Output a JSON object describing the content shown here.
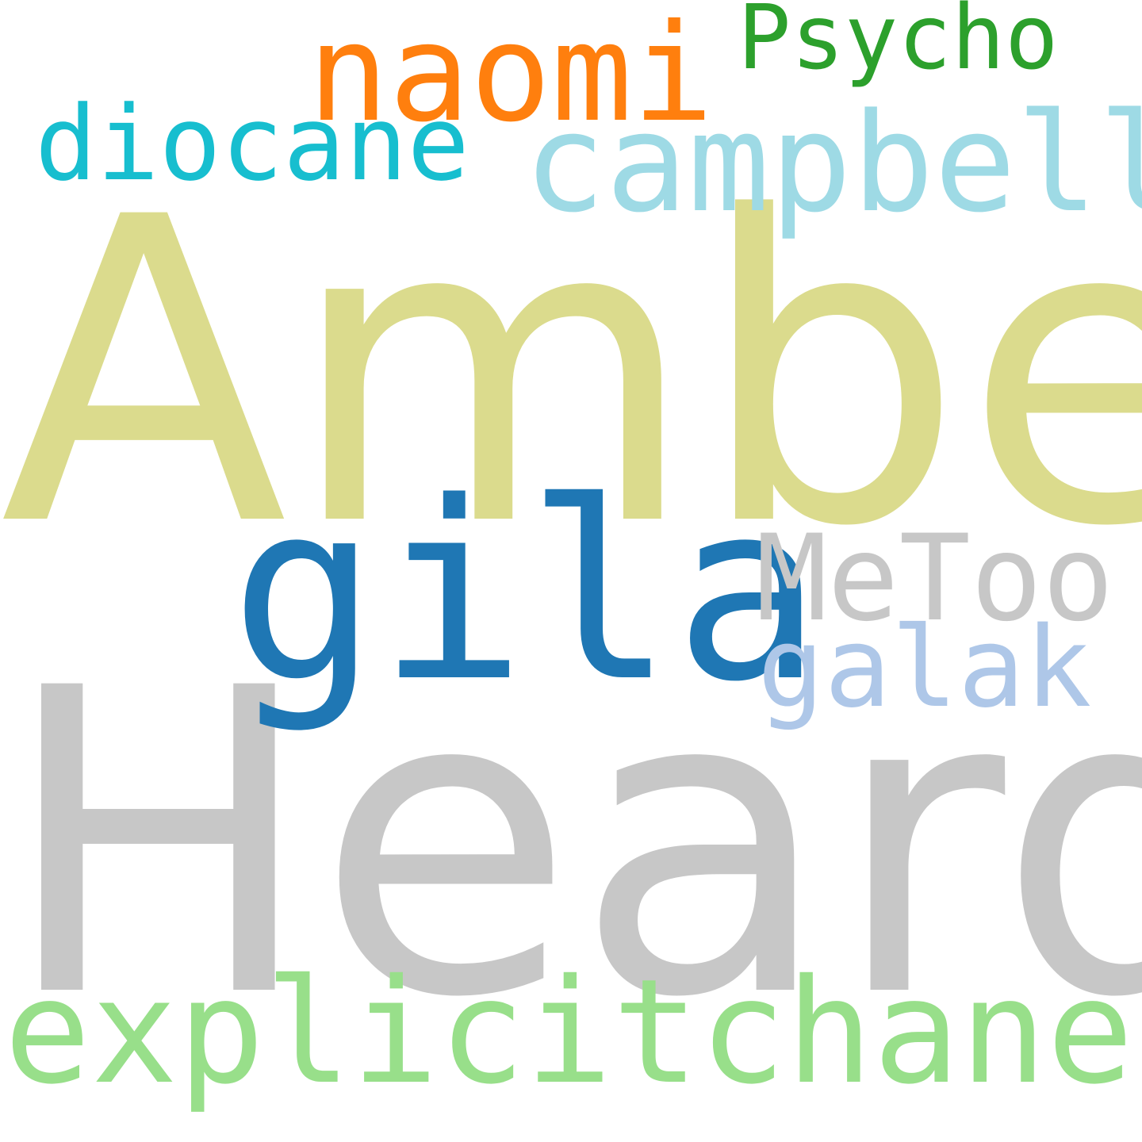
{
  "words": [
    {
      "key": "amber",
      "text": "Amber",
      "color": "#dbdb8d"
    },
    {
      "key": "heard",
      "text": "Heard",
      "color": "#c7c7c7"
    },
    {
      "key": "gila",
      "text": "gila",
      "color": "#1f77b4"
    },
    {
      "key": "naomi",
      "text": "naomi",
      "color": "#ff7f0e"
    },
    {
      "key": "psycho",
      "text": "Psycho",
      "color": "#2ca02c"
    },
    {
      "key": "diocane",
      "text": "diocane",
      "color": "#17becf"
    },
    {
      "key": "campbell",
      "text": "campbell",
      "color": "#9edae5"
    },
    {
      "key": "metoo",
      "text": "MeToo",
      "color": "#c7c7c7"
    },
    {
      "key": "galak",
      "text": "galak",
      "color": "#aec7e8"
    },
    {
      "key": "explicit",
      "text": "explicitchanel",
      "color": "#98df8a"
    }
  ]
}
